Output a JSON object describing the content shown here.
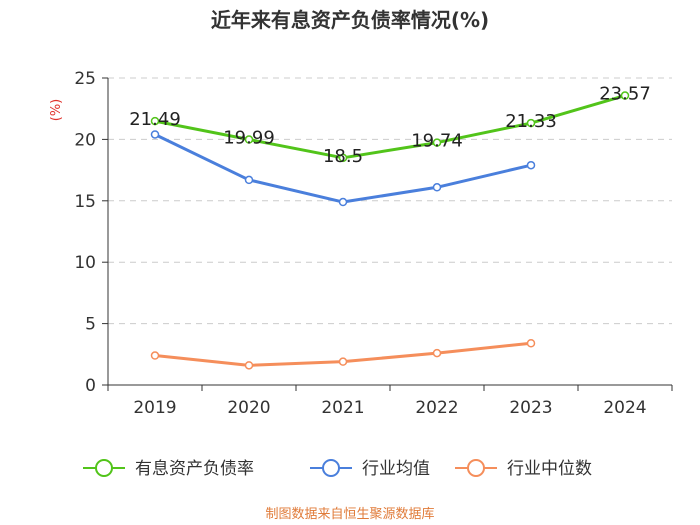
{
  "chart_data": {
    "type": "line",
    "title": "近年来有息资产负债率情况(%)",
    "ylabel": "(%)",
    "categories": [
      "2019",
      "2020",
      "2021",
      "2022",
      "2023",
      "2024"
    ],
    "ylim": [
      0,
      25
    ],
    "yticks": [
      0,
      5,
      10,
      15,
      20,
      25
    ],
    "grid": true,
    "legend_position": "bottom",
    "series": [
      {
        "name": "有息资产负债率",
        "color": "#52c41a",
        "values": [
          21.49,
          19.99,
          18.5,
          19.74,
          21.33,
          23.57
        ],
        "labels": [
          "21.49",
          "19.99",
          "18.5",
          "19.74",
          "21.33",
          "23.57"
        ]
      },
      {
        "name": "行业均值",
        "color": "#4a7fdc",
        "values": [
          20.4,
          16.7,
          14.9,
          16.1,
          17.9,
          null
        ]
      },
      {
        "name": "行业中位数",
        "color": "#f58e5b",
        "values": [
          2.4,
          1.6,
          1.9,
          2.6,
          3.4,
          null
        ]
      }
    ]
  },
  "source": "制图数据来自恒生聚源数据库",
  "colors": {
    "source": "#e07b39",
    "ylabel": "#e0312b",
    "grid": "#cccccc",
    "axis": "#333333"
  }
}
